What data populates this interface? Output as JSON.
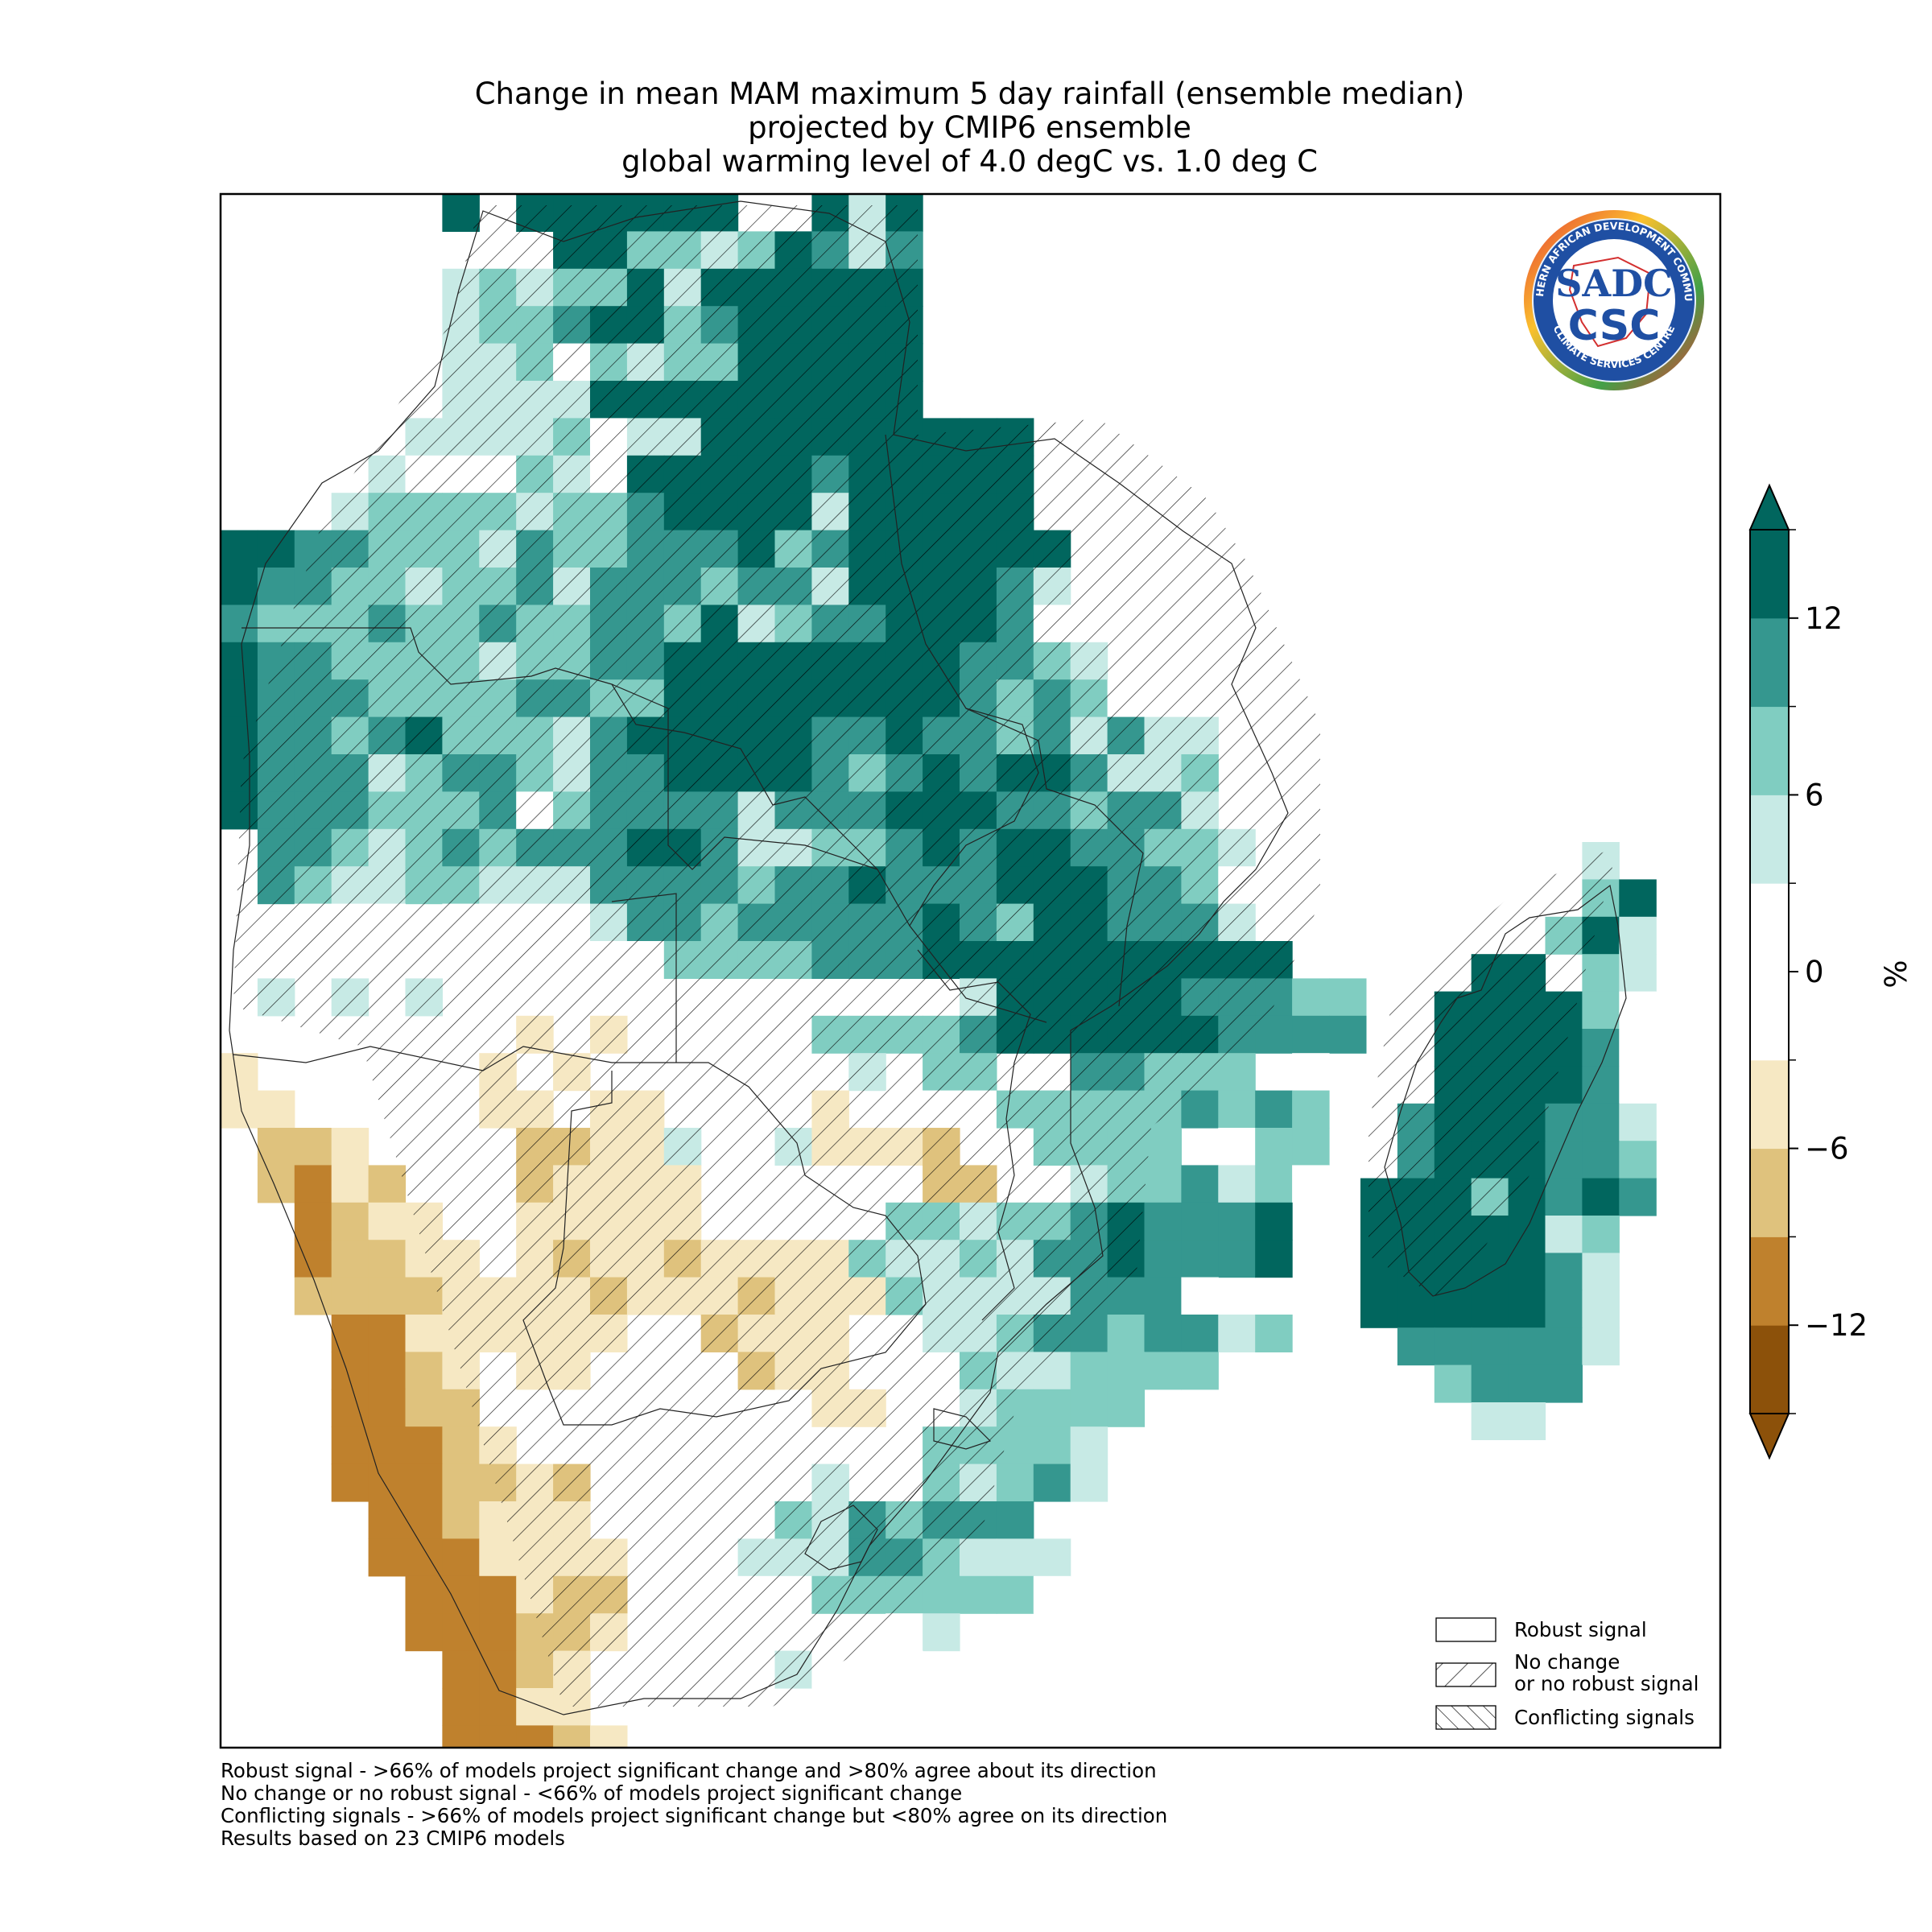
{
  "title": {
    "line1": "Change in mean MAM maximum 5 day rainfall (ensemble median)",
    "line2": "projected by CMIP6 ensemble",
    "line3": "global warming level of 4.0 degC vs. 1.0 deg C"
  },
  "logo": {
    "ring_text_top": "SOUTHERN AFRICAN DEVELOPMENT COMMUNITY",
    "ring_text_bottom": "CLIMATE SERVICES CENTRE",
    "monogram_top": "SADC",
    "monogram_bottom": "CSC"
  },
  "colorbar": {
    "unit": "%",
    "ticks": [
      "12",
      "6",
      "0",
      "−6",
      "−12"
    ],
    "tick_values": [
      12,
      6,
      0,
      -6,
      -12
    ],
    "bounds": [
      -15,
      -12,
      -9,
      -6,
      -3,
      3,
      6,
      9,
      12,
      15
    ],
    "colors": [
      "#8c510a",
      "#bf812d",
      "#dfc27d",
      "#f6e8c3",
      "#ffffff",
      "#c7eae5",
      "#80cdc1",
      "#35978f",
      "#01665e"
    ],
    "under_color": "#8c510a",
    "over_color": "#01665e"
  },
  "legend": {
    "robust": "Robust signal",
    "nochange_line1": "No change",
    "nochange_line2": "or no robust signal",
    "conflicting": "Conflicting signals"
  },
  "notes": {
    "line1": "Robust signal - >66% of models project significant change and >80% agree about its direction",
    "line2": "No change or no robust signal - <66% of models project significant change",
    "line3": "Conflicting signals - >66% of models project significant change but <80% agree on its direction",
    "line4": "Results based on 23 CMIP6 models"
  },
  "map_data": {
    "grid": [
      "......E.EEEEEE..EBE............",
      ".........EECCBCEDBD............",
      "......BCBCCEBEEEEEE............",
      "......BCCDEECDEEEEE............",
      "......BBCACBCCEEEEE............",
      ".....ABBBBEEEEEEEEE............",
      ".....BBBBCABBEEEEEEEEE.........",
      "....BAAACBAEEEEEDEEEEE.........",
      "...BCCCCBCCDEEEEBEEEEE.........",
      "EEDDCCCBDCCDDDECDEEEEEE........",
      "EDDCCBCCDBDDDCDDBEEEEDB........",
      "DCCCDCCDCCDDCEBCDDEEEDA........",
      "EDDCCCCBCCDDEEEEEEEEDDCB.......",
      "EDDDCCCCDDCCEEEEEEEEDCDCA......",
      "EDDCDECCCBDEEEEEDDEDDCDBDBB....",
      "EDDDBCDDCBDDEEEEDCDEDEEDBBC....",
      "EDDDCCCDACDDDDBDDDEEEDDCDDB....",
      ".DDCBCDCDDDEEDBBCCDEDEEDDCCB...",
      ".DCBBCCBBBDDDDCDDEDDDEEEDDCA...",
      "..AAA.AAAABDDCDDDDDEDCEEDDDB...",
      ".....AAAAAAACCCCDDDEEEEEEEEEE..",
      ".B.B.B..............BEEEEEDDDCC",
      "........b.b.....CCCCDEEEEEEDDDD",
      "b......b.b.A.....B.CC..DDCCC.A.",
      "bb.....bb.bb....b.AAACCCCCDCDC.",
      ".ccb....ccbbB..Bbbbc..CCCC.ACC.",
      ".cdbc...cbbbb......cc..BCCDBCA.",
      "..dcbb..bbbbb.....CCBCCDEDDDE..",
      "..dccbb.bcbbcbbbbCBBCBDDEDDDE..",
      "..ccccbbbbcbbbcbbbCBBBBDDDA....",
      "...ddbbbbbb..cbbb..BBCDDCDDBC..",
      "...ddcb.bb....cbb...CBBCCCC....",
      "...ddcc.........bb..BCCCC......",
      "...dddcb...........CCCCB.......",
      "...dddccbc......B..CBCDB.......",
      "....ddcbbb.....CBDCDDD.........",
      "....dddbbbb...BBBDDCBBB........",
      ".....dddbcc...AACCCCCCA........",
      ".....dddccb.......AB...........",
      "......ddcb.....BA.A............",
      "......ddbb.....................",
      "......dddcb....................",
      ".......ddd....................."
    ],
    "grid_columns_note": "",
    "madagascar": [
      "......B.",
      "......CE",
      ".....CEB",
      "...EE.CB",
      "..EEEECA",
      "..EEEEDA",
      "..EEEEDA",
      ".DEEEDDB",
      ".DEEEDDC",
      "EEECEDED",
      "EEEEEBC.",
      "EEEEEDB.",
      "EEEEEDB.",
      ".DDDDDB.",
      "..CDDD..",
      "...BB..."
    ],
    "color_codes": {
      "E": "#01665e",
      "D": "#35978f",
      "C": "#80cdc1",
      "B": "#c7eae5",
      "A": "#ffffff",
      "b": "#f6e8c3",
      "c": "#dfc27d",
      "d": "#bf812d",
      "e": "#8c510a"
    }
  }
}
